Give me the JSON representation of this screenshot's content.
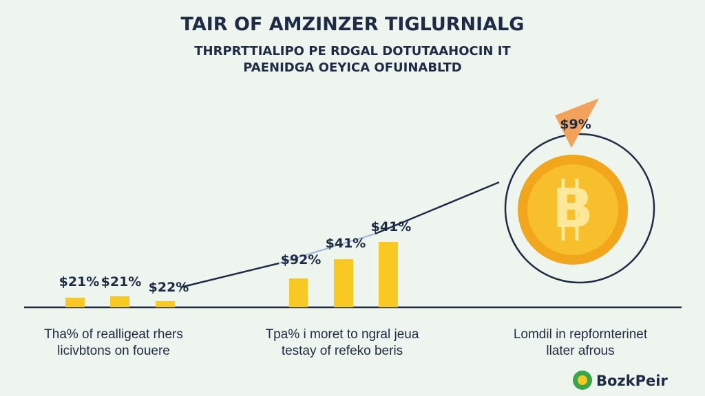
{
  "header": {
    "title": "TAIR OF AMZINZER TIGLURNIALG",
    "subtitle_lines": [
      "THRPRTTIALIPO PE RDGAL DOTUTAAHOCIN IT",
      "PAENIDGA OEYICA OFUINABLTD"
    ]
  },
  "bar_labels": [
    "$21%",
    "$21%",
    "$22%",
    "$92%",
    "$41%",
    "$41%"
  ],
  "badge": "$9%",
  "captions": [
    [
      "Tha% of realligeat rhers",
      "licivbtons on fouere"
    ],
    [
      "Tpa% i moret to ngral jeua",
      "testay of refeko beris"
    ],
    [
      "Lomdil in repfornterinet",
      "llater afrous"
    ]
  ],
  "logo": "BozkPeir"
}
